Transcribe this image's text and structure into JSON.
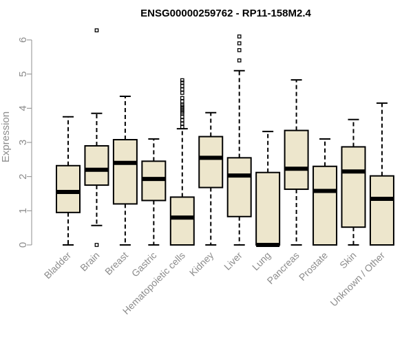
{
  "chart_data": {
    "type": "boxplot",
    "title": "ENSG00000259762 - RP11-158M2.4",
    "xlabel": "",
    "ylabel": "Expression",
    "ylim": [
      0,
      6.3
    ],
    "yticks": [
      0,
      1,
      2,
      3,
      4,
      5,
      6
    ],
    "grid": false,
    "box_color": "#ede6cc",
    "categories": [
      "Bladder",
      "Brain",
      "Breast",
      "Gastric",
      "Hematopoietic cells",
      "Kidney",
      "Liver",
      "Lung",
      "Pancreas",
      "Prostate",
      "Skin",
      "Unknown / Other"
    ],
    "boxes": [
      {
        "min": 0,
        "q1": 0.95,
        "median": 1.55,
        "q3": 2.32,
        "max": 3.75,
        "outliers": []
      },
      {
        "min": 0.57,
        "q1": 1.75,
        "median": 2.2,
        "q3": 2.9,
        "max": 3.85,
        "outliers": [
          0,
          6.28
        ]
      },
      {
        "min": 0,
        "q1": 1.2,
        "median": 2.4,
        "q3": 3.08,
        "max": 4.35,
        "outliers": []
      },
      {
        "min": 0,
        "q1": 1.3,
        "median": 1.93,
        "q3": 2.45,
        "max": 3.1,
        "outliers": []
      },
      {
        "min": 0,
        "q1": 0,
        "median": 0.8,
        "q3": 1.4,
        "max": 3.4,
        "outliers": [
          3.45,
          3.55,
          3.65,
          3.75,
          3.85,
          3.9,
          3.95,
          4.0,
          4.05,
          4.1,
          4.2,
          4.3,
          4.45,
          4.55,
          4.65,
          4.75,
          4.82
        ]
      },
      {
        "min": 0,
        "q1": 1.68,
        "median": 2.55,
        "q3": 3.17,
        "max": 3.87,
        "outliers": []
      },
      {
        "min": 0,
        "q1": 0.83,
        "median": 2.03,
        "q3": 2.55,
        "max": 5.1,
        "outliers": [
          5.4,
          5.7,
          5.9,
          6.1
        ]
      },
      {
        "min": 0,
        "q1": 0,
        "median": 0,
        "q3": 2.12,
        "max": 3.32,
        "outliers": []
      },
      {
        "min": 0,
        "q1": 1.63,
        "median": 2.23,
        "q3": 3.35,
        "max": 4.83,
        "outliers": []
      },
      {
        "min": 0,
        "q1": 0,
        "median": 1.58,
        "q3": 2.3,
        "max": 3.1,
        "outliers": []
      },
      {
        "min": 0,
        "q1": 0.52,
        "median": 2.15,
        "q3": 2.87,
        "max": 3.67,
        "outliers": []
      },
      {
        "min": 0,
        "q1": 0,
        "median": 1.35,
        "q3": 2.02,
        "max": 4.15,
        "outliers": []
      }
    ]
  }
}
